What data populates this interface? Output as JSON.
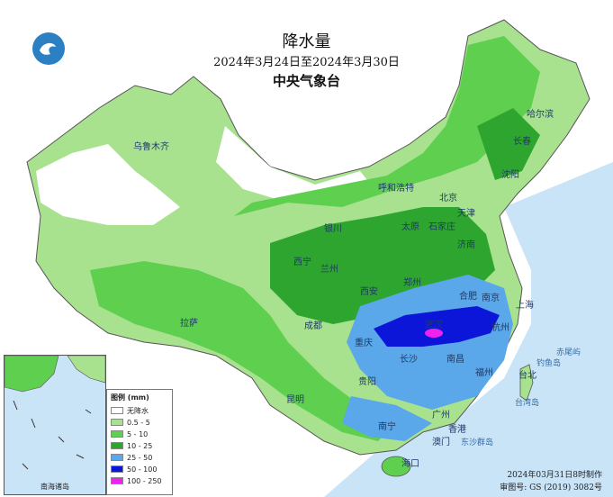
{
  "header": {
    "title": "降水量",
    "date_range": "2024年3月24日至2024年3月30日",
    "agency": "中央气象台"
  },
  "legend": {
    "title": "图例 (mm)",
    "items": [
      {
        "label": "无降水",
        "color": "#ffffff"
      },
      {
        "label": "0.5 - 5",
        "color": "#a8e28f"
      },
      {
        "label": "5 - 10",
        "color": "#5fcf4f"
      },
      {
        "label": "10 - 25",
        "color": "#2ea52e"
      },
      {
        "label": "25 - 50",
        "color": "#5aa7ea"
      },
      {
        "label": "50 - 100",
        "color": "#0c16d8"
      },
      {
        "label": "100 - 250",
        "color": "#ee22ee"
      }
    ]
  },
  "cities": [
    {
      "name": "哈尔滨"
    },
    {
      "name": "长春"
    },
    {
      "name": "沈阳"
    },
    {
      "name": "呼和浩特"
    },
    {
      "name": "北京"
    },
    {
      "name": "天津"
    },
    {
      "name": "石家庄"
    },
    {
      "name": "太原"
    },
    {
      "name": "济南"
    },
    {
      "name": "乌鲁木齐"
    },
    {
      "name": "银川"
    },
    {
      "name": "西宁"
    },
    {
      "name": "兰州"
    },
    {
      "name": "郑州"
    },
    {
      "name": "西安"
    },
    {
      "name": "合肥"
    },
    {
      "name": "南京"
    },
    {
      "name": "上海"
    },
    {
      "name": "武汉"
    },
    {
      "name": "杭州"
    },
    {
      "name": "成都"
    },
    {
      "name": "重庆"
    },
    {
      "name": "长沙"
    },
    {
      "name": "南昌"
    },
    {
      "name": "拉萨"
    },
    {
      "name": "贵阳"
    },
    {
      "name": "福州"
    },
    {
      "name": "台北"
    },
    {
      "name": "昆明"
    },
    {
      "name": "南宁"
    },
    {
      "name": "广州"
    },
    {
      "name": "香港"
    },
    {
      "name": "澳门"
    },
    {
      "name": "海口"
    },
    {
      "name": "赤尾屿"
    },
    {
      "name": "钓鱼岛"
    },
    {
      "name": "台湾岛"
    },
    {
      "name": "东沙群岛"
    }
  ],
  "inset_label": "南海诸岛",
  "footer": {
    "date": "2024年03月31日8时制作",
    "review": "审图号: GS (2019) 3082号"
  }
}
